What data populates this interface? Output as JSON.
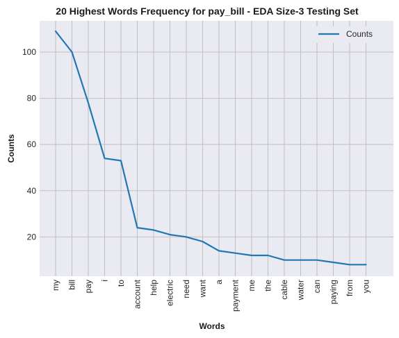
{
  "chart_data": {
    "type": "line",
    "title": "20 Highest Words Frequency for pay_bill - EDA Size-3 Testing Set",
    "xlabel": "Words",
    "ylabel": "Counts",
    "categories": [
      "my",
      "bill",
      "pay",
      "i",
      "to",
      "account",
      "help",
      "electric",
      "need",
      "want",
      "a",
      "payment",
      "me",
      "the",
      "cable",
      "water",
      "can",
      "paying",
      "from",
      "you"
    ],
    "series": [
      {
        "name": "Counts",
        "values": [
          109,
          100,
          78,
          54,
          53,
          24,
          23,
          21,
          20,
          18,
          14,
          13,
          12,
          12,
          10,
          10,
          10,
          9,
          8,
          8
        ],
        "color": "#1f77b4"
      }
    ],
    "yticks": [
      20,
      40,
      60,
      80,
      100
    ],
    "ylim": [
      3,
      113.5
    ],
    "grid": true,
    "legend_position": "top-right",
    "background_color": "#eaeaf2",
    "grid_color": "#c0c0c0"
  }
}
